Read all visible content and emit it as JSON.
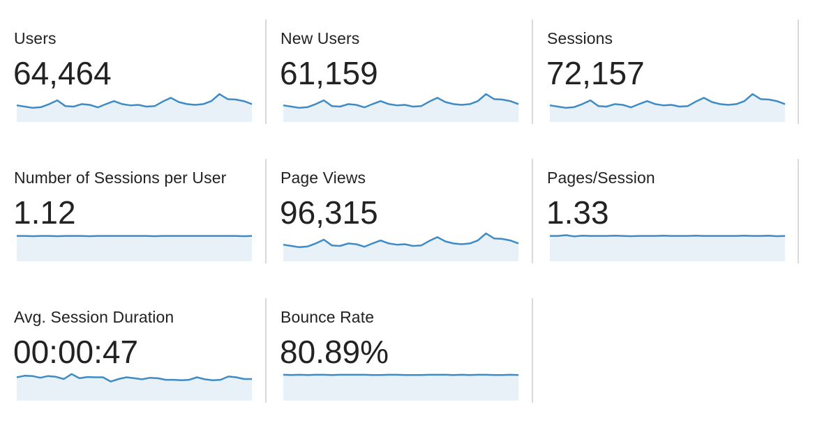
{
  "colors": {
    "line": "#3e8bc6",
    "fill": "#e9f1f8",
    "divider": "#d9d9d9",
    "text": "#222222"
  },
  "metrics": [
    {
      "label": "Users",
      "value": "64,464",
      "trend": [
        0.55,
        0.5,
        0.45,
        0.48,
        0.6,
        0.75,
        0.52,
        0.5,
        0.6,
        0.57,
        0.47,
        0.6,
        0.72,
        0.6,
        0.55,
        0.57,
        0.5,
        0.52,
        0.7,
        0.85,
        0.68,
        0.6,
        0.57,
        0.6,
        0.72,
        1.0,
        0.8,
        0.78,
        0.72,
        0.6
      ]
    },
    {
      "label": "New Users",
      "value": "61,159",
      "trend": [
        0.55,
        0.5,
        0.45,
        0.48,
        0.6,
        0.75,
        0.52,
        0.5,
        0.6,
        0.57,
        0.47,
        0.6,
        0.72,
        0.6,
        0.55,
        0.57,
        0.5,
        0.52,
        0.7,
        0.85,
        0.68,
        0.6,
        0.57,
        0.6,
        0.72,
        1.0,
        0.8,
        0.78,
        0.72,
        0.6
      ]
    },
    {
      "label": "Sessions",
      "value": "72,157",
      "trend": [
        0.55,
        0.5,
        0.45,
        0.48,
        0.6,
        0.75,
        0.52,
        0.5,
        0.6,
        0.57,
        0.47,
        0.6,
        0.72,
        0.6,
        0.55,
        0.57,
        0.5,
        0.52,
        0.7,
        0.85,
        0.68,
        0.6,
        0.57,
        0.6,
        0.72,
        1.0,
        0.8,
        0.78,
        0.72,
        0.6
      ]
    },
    {
      "label": "Number of Sessions per User",
      "value": "1.12",
      "trend": [
        0.9,
        0.9,
        0.89,
        0.9,
        0.9,
        0.89,
        0.9,
        0.9,
        0.9,
        0.89,
        0.9,
        0.9,
        0.9,
        0.9,
        0.9,
        0.9,
        0.9,
        0.89,
        0.9,
        0.9,
        0.9,
        0.9,
        0.9,
        0.9,
        0.9,
        0.9,
        0.9,
        0.9,
        0.89,
        0.9
      ]
    },
    {
      "label": "Page Views",
      "value": "96,315",
      "trend": [
        0.55,
        0.5,
        0.45,
        0.48,
        0.6,
        0.75,
        0.52,
        0.5,
        0.6,
        0.57,
        0.47,
        0.6,
        0.72,
        0.6,
        0.55,
        0.57,
        0.5,
        0.52,
        0.7,
        0.85,
        0.68,
        0.6,
        0.57,
        0.6,
        0.72,
        1.0,
        0.8,
        0.78,
        0.72,
        0.6
      ]
    },
    {
      "label": "Pages/Session",
      "value": "1.33",
      "trend": [
        0.9,
        0.9,
        0.93,
        0.88,
        0.91,
        0.9,
        0.9,
        0.9,
        0.91,
        0.9,
        0.89,
        0.9,
        0.9,
        0.9,
        0.91,
        0.9,
        0.9,
        0.9,
        0.91,
        0.9,
        0.9,
        0.9,
        0.9,
        0.9,
        0.91,
        0.9,
        0.9,
        0.91,
        0.89,
        0.9
      ]
    },
    {
      "label": "Avg. Session Duration",
      "value": "00:00:47",
      "trend": [
        0.82,
        0.88,
        0.87,
        0.8,
        0.87,
        0.84,
        0.75,
        0.95,
        0.78,
        0.83,
        0.82,
        0.82,
        0.65,
        0.75,
        0.82,
        0.78,
        0.74,
        0.8,
        0.78,
        0.72,
        0.72,
        0.7,
        0.72,
        0.82,
        0.74,
        0.7,
        0.72,
        0.85,
        0.82,
        0.75,
        0.75
      ]
    },
    {
      "label": "Bounce Rate",
      "value": "80.89%",
      "trend": [
        0.92,
        0.91,
        0.92,
        0.91,
        0.92,
        0.92,
        0.91,
        0.92,
        0.92,
        0.92,
        0.92,
        0.91,
        0.91,
        0.92,
        0.92,
        0.91,
        0.91,
        0.91,
        0.92,
        0.92,
        0.92,
        0.91,
        0.92,
        0.91,
        0.92,
        0.92,
        0.91,
        0.91,
        0.92,
        0.91
      ]
    }
  ]
}
